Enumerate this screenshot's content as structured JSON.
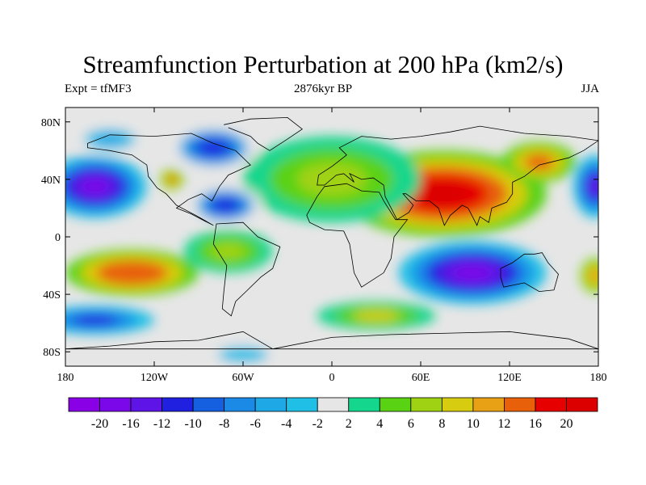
{
  "title": "Streamfunction Perturbation at 200 hPa (km2/s)",
  "left_string": "Expt = tfMF3",
  "center_string": "2876kyr BP",
  "right_string": "JJA",
  "lat_labels": [
    "80N",
    "40N",
    "0",
    "40S",
    "80S"
  ],
  "lon_labels": [
    "180",
    "120W",
    "60W",
    "0",
    "60E",
    "120E",
    "180"
  ],
  "colorbar": {
    "labels": [
      "-20",
      "-16",
      "-12",
      "-10",
      "-8",
      "-6",
      "-4",
      "-2",
      "2",
      "4",
      "6",
      "8",
      "10",
      "12",
      "16",
      "20"
    ],
    "colors": [
      "#8a00e6",
      "#7a08e8",
      "#5e14e6",
      "#2020e0",
      "#1560e0",
      "#1a8ae6",
      "#1ea8e6",
      "#20c0e6",
      "#e6e6e6",
      "#14d68c",
      "#5ad214",
      "#a0d214",
      "#d8cc10",
      "#e8a014",
      "#e8600a",
      "#e60000",
      "#dc0000"
    ]
  },
  "chart_data": {
    "type": "heatmap",
    "title": "Streamfunction Perturbation at 200 hPa (km2/s)",
    "subtitle": "2876kyr BP",
    "experiment": "Expt = tfMF3",
    "season": "JJA",
    "xlim": [
      -180,
      180
    ],
    "ylim": [
      -90,
      90
    ],
    "xticks": [
      "180",
      "120W",
      "60W",
      "0",
      "60E",
      "120E",
      "180"
    ],
    "yticks": [
      "80N",
      "40N",
      "0",
      "40S",
      "80S"
    ],
    "contour_levels": [
      -20,
      -16,
      -12,
      -10,
      -8,
      -6,
      -4,
      -2,
      2,
      4,
      6,
      8,
      10,
      12,
      16,
      20
    ],
    "features": [
      {
        "lon": 75,
        "lat": 33,
        "value": 20
      },
      {
        "lon": 140,
        "lat": 53,
        "value": 12
      },
      {
        "lon": 25,
        "lat": 42,
        "value": 7
      },
      {
        "lon": -135,
        "lat": -23,
        "value": 14
      },
      {
        "lon": -108,
        "lat": 40,
        "value": 12
      },
      {
        "lon": 40,
        "lat": -57,
        "value": 8
      },
      {
        "lon": 178,
        "lat": -27,
        "value": 11
      },
      {
        "lon": -160,
        "lat": 35,
        "value": -20
      },
      {
        "lon": 173,
        "lat": 38,
        "value": -16
      },
      {
        "lon": -70,
        "lat": 22,
        "value": -12
      },
      {
        "lon": -78,
        "lat": 62,
        "value": -12
      },
      {
        "lon": 95,
        "lat": -25,
        "value": -20
      },
      {
        "lon": -160,
        "lat": -58,
        "value": -12
      },
      {
        "lon": -60,
        "lat": -80,
        "value": -4
      },
      {
        "lon": -145,
        "lat": 68,
        "value": -6
      }
    ]
  }
}
